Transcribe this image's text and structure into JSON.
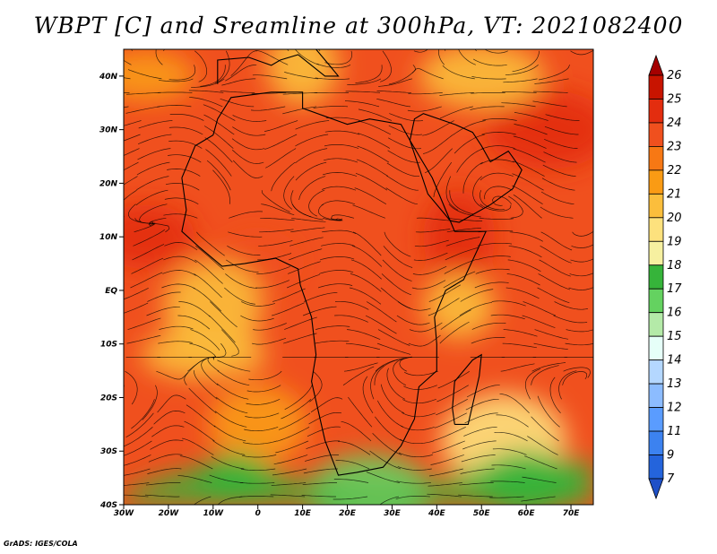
{
  "title": "WBPT [C] and Sreamline at 300hPa, VT: 2021082400",
  "credit": "GrADS: IGES/COLA",
  "map": {
    "lon_range": [
      -30,
      75
    ],
    "lat_range": [
      -40,
      45
    ],
    "lat_ticks": [
      {
        "value": 40,
        "label": "40N"
      },
      {
        "value": 30,
        "label": "30N"
      },
      {
        "value": 20,
        "label": "20N"
      },
      {
        "value": 10,
        "label": "10N"
      },
      {
        "value": 0,
        "label": "EQ"
      },
      {
        "value": -10,
        "label": "10S"
      },
      {
        "value": -20,
        "label": "20S"
      },
      {
        "value": -30,
        "label": "30S"
      },
      {
        "value": -40,
        "label": "40S"
      }
    ],
    "lon_ticks": [
      {
        "value": -30,
        "label": "30W"
      },
      {
        "value": -20,
        "label": "20W"
      },
      {
        "value": -10,
        "label": "10W"
      },
      {
        "value": 0,
        "label": "0"
      },
      {
        "value": 10,
        "label": "10E"
      },
      {
        "value": 20,
        "label": "20E"
      },
      {
        "value": 30,
        "label": "30E"
      },
      {
        "value": 40,
        "label": "40E"
      },
      {
        "value": 50,
        "label": "50E"
      },
      {
        "value": 60,
        "label": "60E"
      },
      {
        "value": 70,
        "label": "70E"
      }
    ]
  },
  "colorbar": {
    "levels": [
      {
        "label": "26",
        "color": "#a50000"
      },
      {
        "label": "25",
        "color": "#c81400"
      },
      {
        "label": "24",
        "color": "#e32d0f"
      },
      {
        "label": "23",
        "color": "#f0501e"
      },
      {
        "label": "22",
        "color": "#f77814"
      },
      {
        "label": "21",
        "color": "#fa9b14"
      },
      {
        "label": "20",
        "color": "#fbbe3c"
      },
      {
        "label": "19",
        "color": "#fde17d"
      },
      {
        "label": "18",
        "color": "#f6f0a0"
      },
      {
        "label": "17",
        "color": "#36b43a"
      },
      {
        "label": "16",
        "color": "#64d260"
      },
      {
        "label": "15",
        "color": "#b4eaa8"
      },
      {
        "label": "14",
        "color": "#e6fff8"
      },
      {
        "label": "13",
        "color": "#b4d7ff"
      },
      {
        "label": "12",
        "color": "#8cbcff"
      },
      {
        "label": "11",
        "color": "#5a9cff"
      },
      {
        "label": "9",
        "color": "#3c82f0"
      },
      {
        "label": "7",
        "color": "#2464dc"
      }
    ],
    "bottom_color": "#1e50c8"
  },
  "field_regions": [
    {
      "lon": 0,
      "lat": 5,
      "value": 23
    },
    {
      "lon": -25,
      "lat": 10,
      "value": 24
    },
    {
      "lon": 65,
      "lat": 30,
      "value": 24
    },
    {
      "lon": 45,
      "lat": 10,
      "value": 24
    },
    {
      "lon": -25,
      "lat": 40,
      "value": 21
    },
    {
      "lon": 50,
      "lat": 40,
      "value": 20
    },
    {
      "lon": 10,
      "lat": 42,
      "value": 20
    },
    {
      "lon": -10,
      "lat": -3,
      "value": 20
    },
    {
      "lon": -12,
      "lat": -12,
      "value": 20
    },
    {
      "lon": 45,
      "lat": -3,
      "value": 20
    },
    {
      "lon": 0,
      "lat": -25,
      "value": 21
    },
    {
      "lon": 55,
      "lat": -28,
      "value": 19
    },
    {
      "lon": -5,
      "lat": -35,
      "value": 17
    },
    {
      "lon": 60,
      "lat": -36,
      "value": 17
    },
    {
      "lon": 25,
      "lat": -38,
      "value": 16
    }
  ]
}
